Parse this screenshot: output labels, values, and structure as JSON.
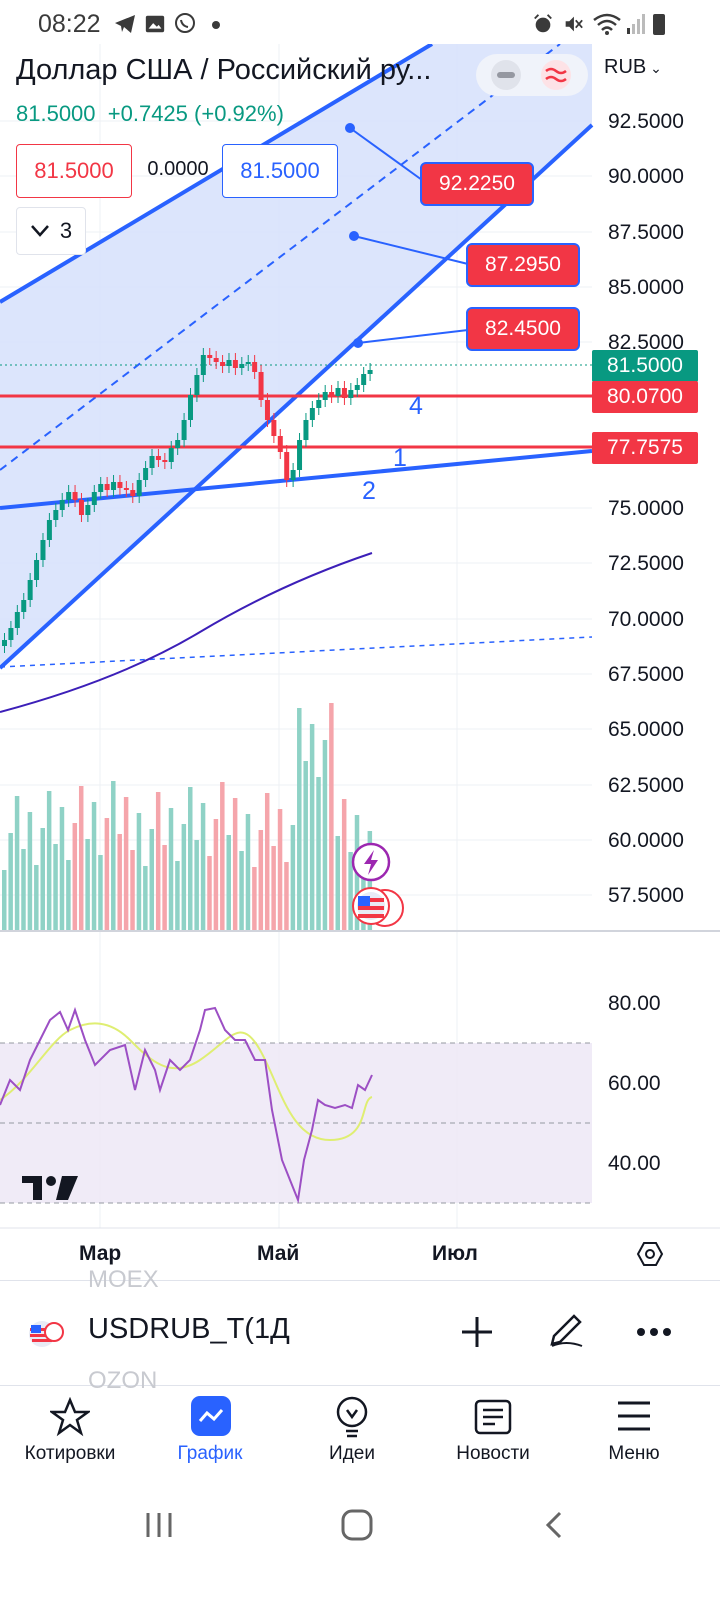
{
  "status_bar": {
    "time": "08:22"
  },
  "header": {
    "title": "Доллар США / Российский ру...",
    "currency": "RUB",
    "price": "81.5000",
    "change": "+0.7425 (+0.92%)",
    "sell_price": "81.5000",
    "spread": "0.0000",
    "buy_price": "81.5000",
    "indicators_count": "3"
  },
  "price_axis": [
    "92.5000",
    "90.0000",
    "87.5000",
    "85.0000",
    "82.5000",
    "75.0000",
    "72.5000",
    "70.0000",
    "67.5000",
    "65.0000",
    "62.5000",
    "60.0000",
    "57.5000"
  ],
  "price_tags": {
    "last": "81.5000",
    "line_a": "80.0700",
    "line_b": "77.7575"
  },
  "callouts": {
    "c1": "92.2250",
    "c2": "87.2950",
    "c3": "82.4500"
  },
  "wave_labels": {
    "w4": "4",
    "w1": "1",
    "w2": "2"
  },
  "rsi_axis": [
    "80.00",
    "60.00",
    "40.00"
  ],
  "time_axis": [
    "Мар",
    "Май",
    "Июл"
  ],
  "symbol_bar": {
    "ticker": "USDRUB_T(",
    "interval": "1Д",
    "ghost_above": "MOEX",
    "ghost_below": "OZON"
  },
  "nav": [
    {
      "label": "Котировки",
      "icon": "star-icon"
    },
    {
      "label": "График",
      "icon": "chart-icon"
    },
    {
      "label": "Идеи",
      "icon": "lightbulb-icon"
    },
    {
      "label": "Новости",
      "icon": "news-icon"
    },
    {
      "label": "Меню",
      "icon": "menu-icon"
    }
  ],
  "colors": {
    "up": "#089981",
    "down": "#f23645",
    "accent": "#2962ff",
    "channel": "#d6e0fc",
    "rsi": "#9c4fc4",
    "rsi_ma": "#dfee72",
    "ma": "#3c1fb8"
  }
}
